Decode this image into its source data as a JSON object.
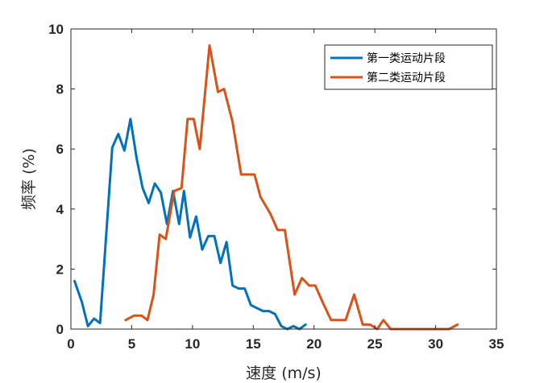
{
  "chart_data": {
    "type": "line",
    "xlabel": "速度 (m/s)",
    "ylabel": "频率 (%)",
    "xlim": [
      0,
      35
    ],
    "ylim": [
      0,
      10
    ],
    "xticks": [
      0,
      5,
      10,
      15,
      20,
      25,
      30,
      35
    ],
    "yticks": [
      0,
      2,
      4,
      6,
      8,
      10
    ],
    "grid": false,
    "legend_position": "top-right",
    "series": [
      {
        "name": "第一类运动片段",
        "color": "#0072BD",
        "x": [
          0.3,
          0.9,
          1.4,
          1.9,
          2.4,
          2.9,
          3.4,
          3.9,
          4.4,
          4.9,
          5.4,
          5.9,
          6.4,
          6.9,
          7.4,
          7.9,
          8.4,
          8.9,
          9.3,
          9.8,
          10.3,
          10.8,
          11.3,
          11.8,
          12.3,
          12.8,
          13.3,
          13.8,
          14.3,
          14.8,
          15.3,
          15.8,
          16.3,
          16.8,
          17.3,
          17.8,
          18.3,
          18.8,
          19.3
        ],
        "values": [
          1.6,
          0.9,
          0.1,
          0.35,
          0.2,
          3.1,
          6.05,
          6.5,
          5.95,
          7.0,
          5.7,
          4.7,
          4.2,
          4.85,
          4.55,
          3.5,
          4.6,
          3.5,
          4.6,
          3.05,
          3.75,
          2.65,
          3.1,
          3.1,
          2.2,
          2.9,
          1.45,
          1.35,
          1.35,
          0.8,
          0.7,
          0.6,
          0.6,
          0.5,
          0.1,
          0.0,
          0.1,
          0.0,
          0.15
        ]
      },
      {
        "name": "第二类运动片段",
        "color": "#D95319",
        "x": [
          4.5,
          5.2,
          5.8,
          6.3,
          6.8,
          7.3,
          7.8,
          8.5,
          9.1,
          9.6,
          10.1,
          10.6,
          11.4,
          12.1,
          12.6,
          13.3,
          14.0,
          15.1,
          15.6,
          16.4,
          17.0,
          17.6,
          18.4,
          19.0,
          19.6,
          20.1,
          20.7,
          21.4,
          22.0,
          22.6,
          23.3,
          24.0,
          24.6,
          25.2,
          25.7,
          26.3,
          26.9,
          27.5,
          28.1,
          28.7,
          29.3,
          29.9,
          30.5,
          31.1,
          31.8
        ],
        "values": [
          0.3,
          0.45,
          0.45,
          0.3,
          1.15,
          3.15,
          3.0,
          4.6,
          4.7,
          7.0,
          7.0,
          6.0,
          9.45,
          7.9,
          8.0,
          6.9,
          5.15,
          5.15,
          4.4,
          3.85,
          3.3,
          3.3,
          1.15,
          1.7,
          1.45,
          1.45,
          0.9,
          0.3,
          0.3,
          0.3,
          1.15,
          0.15,
          0.15,
          0.0,
          0.3,
          0.0,
          0.0,
          0.0,
          0.0,
          0.0,
          0.0,
          0.0,
          0.0,
          0.0,
          0.15
        ]
      }
    ]
  }
}
